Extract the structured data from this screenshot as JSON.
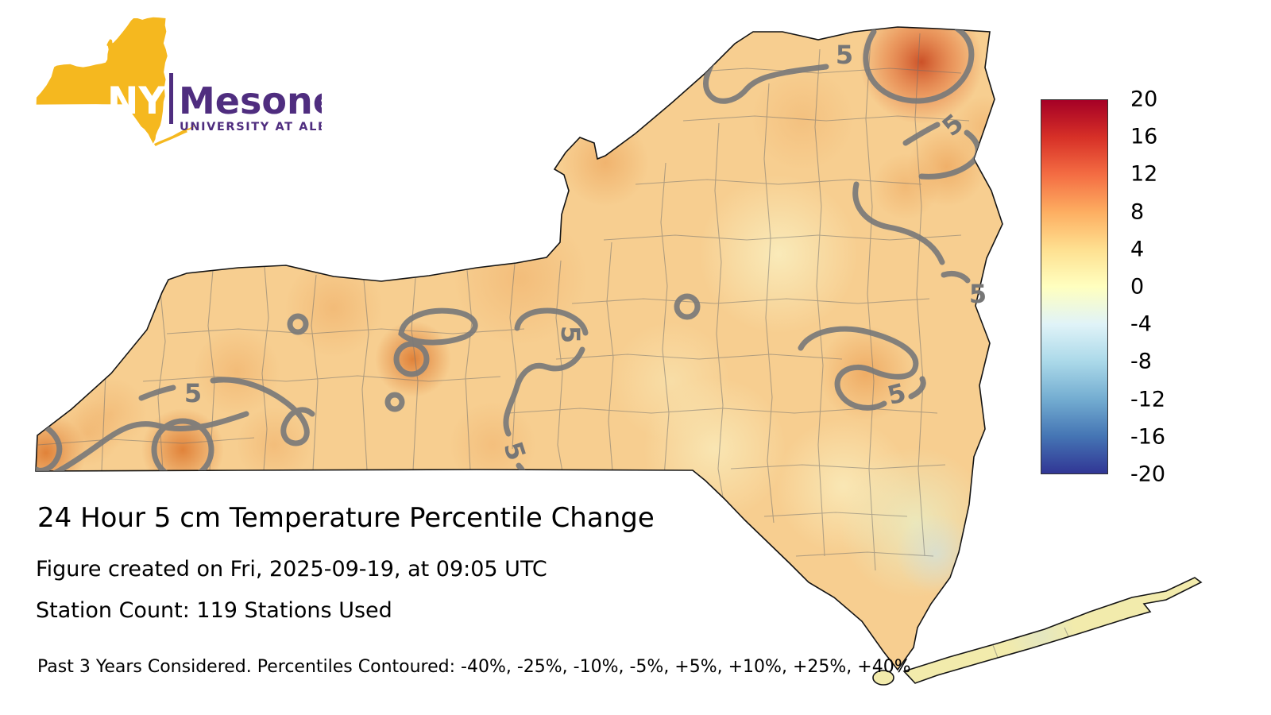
{
  "logo": {
    "nys": "NYS",
    "wordmark": "Mesonet",
    "subtitle": "UNIVERSITY AT ALBANY",
    "gold": "#F5B81F",
    "purple": "#4F2D7F"
  },
  "map": {
    "contour_label": "5",
    "base_fill": "#F7CE90",
    "long_island_fill": "#F2EBAC",
    "outline_color": "#141414",
    "county_line_color": "#6d6d6d",
    "contour_color": "#7a7a7a"
  },
  "colorbar": {
    "ticks": [
      "20",
      "16",
      "12",
      "8",
      "4",
      "0",
      "-4",
      "-8",
      "-12",
      "-16",
      "-20"
    ],
    "gradient_stops": [
      "#A50026",
      "#D73027",
      "#F46D43",
      "#FDAE61",
      "#FEE090",
      "#FFFFBF",
      "#E0F3F8",
      "#ABD9E9",
      "#74ADD1",
      "#4575B4",
      "#313695"
    ]
  },
  "caption": {
    "title": "24 Hour 5 cm Temperature Percentile Change",
    "created": "Figure created on Fri, 2025-09-19, at 09:05 UTC",
    "stations": "Station Count: 119 Stations Used",
    "footnote": "Past 3 Years Considered. Percentiles Contoured: -40%, -25%, -10%, -5%, +5%, +10%, +25%, +40%"
  },
  "chart_data": {
    "type": "heatmap",
    "title": "24 Hour 5 cm Temperature Percentile Change",
    "region": "New York State",
    "variable": "24-hour change in 5 cm soil temperature percentile",
    "colorbar": {
      "min": -20,
      "max": 20,
      "ticks": [
        20,
        16,
        12,
        8,
        4,
        0,
        -4,
        -8,
        -12,
        -16,
        -20
      ],
      "colormap": "RdYlBu (red high, blue low)"
    },
    "contour_levels_percent": [
      -40,
      -25,
      -10,
      -5,
      5,
      10,
      25,
      40
    ],
    "visible_contour_labels": [
      5
    ],
    "stations_used": 119,
    "created_utc": "Fri, 2025-09-19, at 09:05 UTC",
    "years_considered": 3,
    "approx_field_summary": [
      {
        "region": "far northeast corner (Adirondack/Clinton area)",
        "value": "+10 to +16"
      },
      {
        "region": "western Southern Tier (Chautauqua/Cattaraugus spots)",
        "value": "+8 to +10"
      },
      {
        "region": "Finger Lakes local spot",
        "value": "+8"
      },
      {
        "region": "eastern Adirondack foothills spot",
        "value": "+8"
      },
      {
        "region": "most of state",
        "value": "+3 to +6"
      },
      {
        "region": "southeast Catskills / mid-Hudson",
        "value": "0 to -2"
      },
      {
        "region": "Long Island",
        "value": "+1 to +3"
      }
    ]
  }
}
